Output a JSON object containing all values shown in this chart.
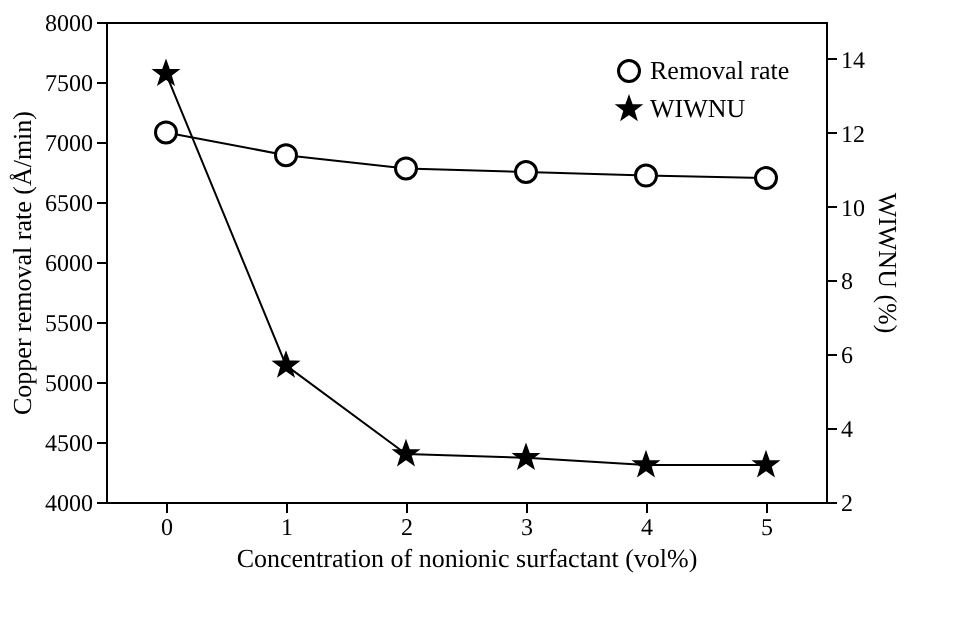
{
  "chart_data": {
    "type": "line",
    "xlabel": "Concentration of nonionic surfactant (vol%)",
    "ylabel": "Copper removal rate (Å/min)",
    "y2label": "WIWNU (%)",
    "x": [
      0,
      1,
      2,
      3,
      4,
      5
    ],
    "xlim": [
      -0.5,
      5.5
    ],
    "xticks": [
      0,
      1,
      2,
      3,
      4,
      5
    ],
    "ylim": [
      4000,
      8000
    ],
    "yticks": [
      4000,
      4500,
      5000,
      5500,
      6000,
      6500,
      7000,
      7500,
      8000
    ],
    "y2lim": [
      2,
      15
    ],
    "y2ticks": [
      2,
      4,
      6,
      8,
      10,
      12,
      14
    ],
    "series": [
      {
        "name": "Removal rate",
        "color": "#000000",
        "marker": "circle",
        "values": [
          7080,
          6890,
          6780,
          6750,
          6720,
          6700
        ]
      },
      {
        "name": "WIWNU",
        "color": "#000000",
        "marker": "star",
        "axis": "y2",
        "values": [
          13.6,
          5.7,
          3.3,
          3.2,
          3.0,
          3.0
        ]
      }
    ],
    "legend": "top right",
    "grid": false
  }
}
